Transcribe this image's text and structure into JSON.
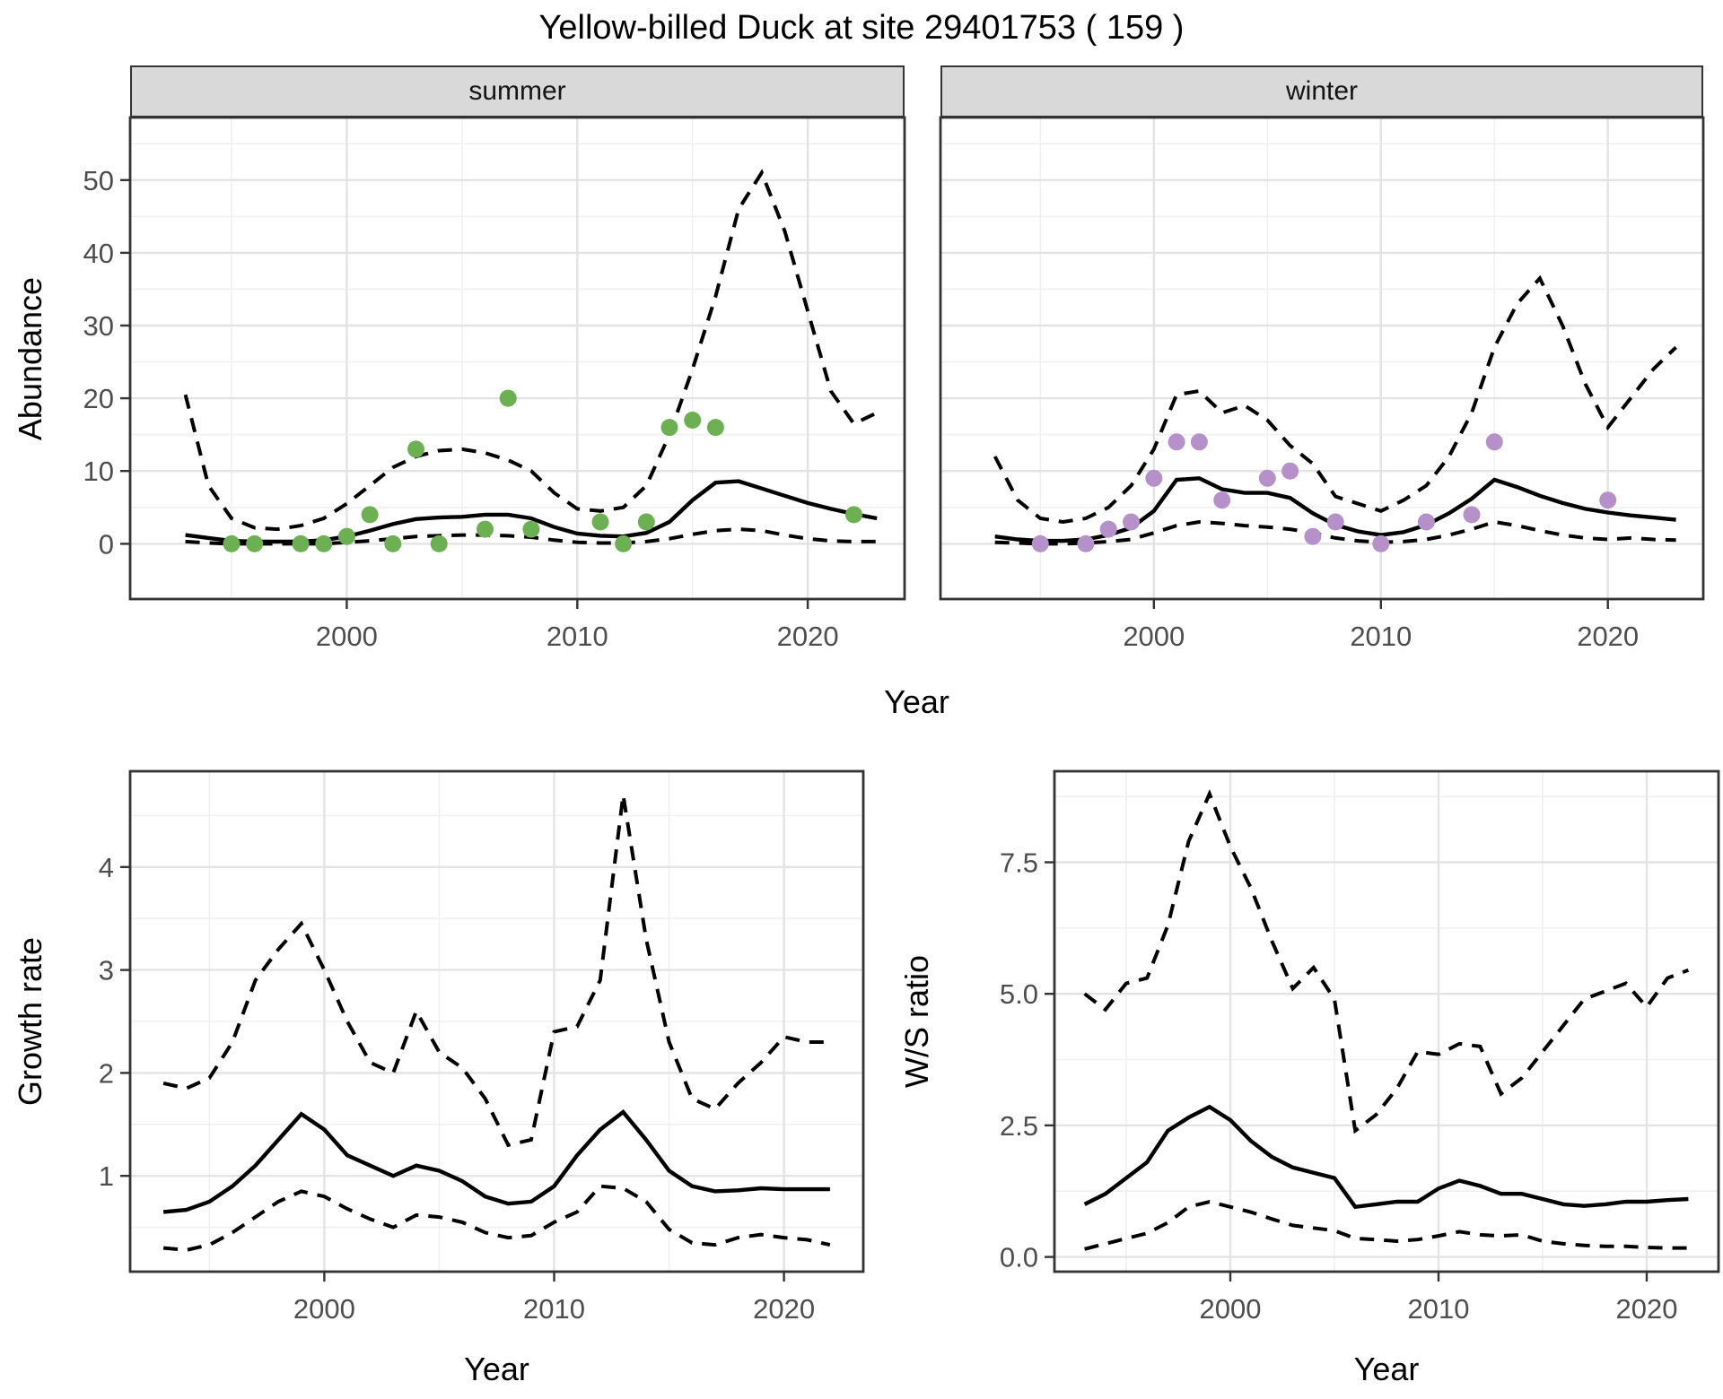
{
  "title": "Yellow-billed Duck at site 29401753 ( 159 )",
  "facets": {
    "summer": "summer",
    "winter": "winter"
  },
  "axes": {
    "abundance_label": "Abundance",
    "year_label": "Year",
    "growth_label": "Growth rate",
    "ws_label": "W/S ratio"
  },
  "colors": {
    "summer_points": "#6cb053",
    "winter_points": "#b690c9",
    "line": "#000000",
    "grid_major": "#e3e3e3",
    "grid_minor": "#f0f0f0",
    "strip_bg": "#d9d9d9",
    "tick_text": "#4d4d4d",
    "panel_border": "#333333"
  },
  "chart_data": [
    {
      "id": "abundance-summer",
      "type": "line",
      "facet": "summer",
      "ylabel": "Abundance",
      "xlabel": "Year",
      "x_domain": [
        1990.6,
        2024.2
      ],
      "y_domain": [
        -7.6,
        58.6
      ],
      "x_ticks": [
        2000,
        2010,
        2020
      ],
      "x_tick_labels": [
        "2000",
        "2010",
        "2020"
      ],
      "x_minor": [
        1995,
        2005,
        2015
      ],
      "y_ticks": [
        0,
        10,
        20,
        30,
        40,
        50
      ],
      "y_tick_labels": [
        "0",
        "10",
        "20",
        "30",
        "40",
        "50"
      ],
      "y_minor": [
        5,
        15,
        25,
        35,
        45,
        55
      ],
      "x": [
        1993,
        1994,
        1995,
        1996,
        1997,
        1998,
        1999,
        2000,
        2001,
        2002,
        2003,
        2004,
        2005,
        2006,
        2007,
        2008,
        2009,
        2010,
        2011,
        2012,
        2013,
        2014,
        2015,
        2016,
        2017,
        2018,
        2019,
        2020,
        2021,
        2022,
        2023
      ],
      "series": [
        {
          "name": "mean",
          "style": "solid",
          "values": [
            1.2,
            0.8,
            0.4,
            0.3,
            0.3,
            0.3,
            0.5,
            1.0,
            1.8,
            2.7,
            3.4,
            3.6,
            3.7,
            4.0,
            4.0,
            3.5,
            2.3,
            1.4,
            1.1,
            1.0,
            1.5,
            3.0,
            6.0,
            8.4,
            8.6,
            7.6,
            6.6,
            5.6,
            4.8,
            4.1,
            3.5
          ]
        },
        {
          "name": "upper_ci",
          "style": "dashed",
          "values": [
            20.5,
            8,
            3.5,
            2.2,
            2.0,
            2.5,
            3.5,
            5.5,
            8,
            10.5,
            12,
            12.8,
            13,
            12.5,
            11.5,
            10,
            7,
            4.8,
            4.5,
            5,
            8,
            15,
            24,
            34,
            46,
            51,
            43,
            32,
            21,
            16.5,
            18
          ]
        },
        {
          "name": "lower_ci",
          "style": "dashed",
          "values": [
            0.3,
            0.1,
            0,
            0,
            0,
            0,
            0,
            0.2,
            0.4,
            0.7,
            1.0,
            1.1,
            1.2,
            1.2,
            1.1,
            0.9,
            0.5,
            0.2,
            0.1,
            0.1,
            0.3,
            0.7,
            1.3,
            1.8,
            2.0,
            1.8,
            1.2,
            0.7,
            0.4,
            0.3,
            0.3
          ]
        }
      ],
      "points": {
        "color_key": "summer_points",
        "x": [
          1995,
          1996,
          1998,
          1999,
          2000,
          2001,
          2002,
          2003,
          2004,
          2006,
          2007,
          2008,
          2011,
          2012,
          2013,
          2014,
          2015,
          2016,
          2022
        ],
        "y": [
          0,
          0,
          0,
          0,
          1,
          4,
          0,
          13,
          0,
          2,
          20,
          2,
          3,
          0,
          3,
          16,
          17,
          16,
          4
        ]
      }
    },
    {
      "id": "abundance-winter",
      "type": "line",
      "facet": "winter",
      "ylabel": "Abundance",
      "xlabel": "Year",
      "x_domain": [
        1990.6,
        2024.2
      ],
      "y_domain": [
        -7.6,
        58.6
      ],
      "x_ticks": [
        2000,
        2010,
        2020
      ],
      "x_tick_labels": [
        "2000",
        "2010",
        "2020"
      ],
      "x_minor": [
        1995,
        2005,
        2015
      ],
      "y_ticks": [
        0,
        10,
        20,
        30,
        40,
        50
      ],
      "y_tick_labels": [
        "0",
        "10",
        "20",
        "30",
        "40",
        "50"
      ],
      "y_minor": [
        5,
        15,
        25,
        35,
        45,
        55
      ],
      "x": [
        1993,
        1994,
        1995,
        1996,
        1997,
        1998,
        1999,
        2000,
        2001,
        2002,
        2003,
        2004,
        2005,
        2006,
        2007,
        2008,
        2009,
        2010,
        2011,
        2012,
        2013,
        2014,
        2015,
        2016,
        2017,
        2018,
        2019,
        2020,
        2021,
        2022,
        2023
      ],
      "series": [
        {
          "name": "mean",
          "style": "solid",
          "values": [
            1.0,
            0.6,
            0.4,
            0.4,
            0.6,
            1.2,
            2.2,
            4.5,
            8.8,
            9.0,
            7.5,
            7.0,
            7.0,
            6.3,
            4.2,
            2.6,
            1.7,
            1.2,
            1.6,
            2.6,
            4.2,
            6.2,
            8.8,
            7.8,
            6.6,
            5.6,
            4.8,
            4.3,
            3.9,
            3.6,
            3.3
          ]
        },
        {
          "name": "upper_ci",
          "style": "dashed",
          "values": [
            12,
            6,
            3.5,
            3,
            3.5,
            5,
            8,
            13,
            20.5,
            21,
            18,
            19,
            17,
            13.5,
            11,
            6.5,
            5.5,
            4.5,
            6,
            8,
            12,
            18,
            27,
            33,
            36.5,
            30,
            22,
            16,
            20,
            24,
            27
          ]
        },
        {
          "name": "lower_ci",
          "style": "dashed",
          "values": [
            0.2,
            0.1,
            0,
            0,
            0.1,
            0.3,
            0.6,
            1.5,
            2.5,
            3.0,
            2.8,
            2.5,
            2.3,
            2.0,
            1.5,
            0.8,
            0.4,
            0.2,
            0.3,
            0.6,
            1.2,
            2.0,
            3.0,
            2.5,
            1.8,
            1.2,
            0.8,
            0.6,
            0.8,
            0.6,
            0.5
          ]
        }
      ],
      "points": {
        "color_key": "winter_points",
        "x": [
          1995,
          1997,
          1998,
          1999,
          2000,
          2001,
          2002,
          2003,
          2005,
          2006,
          2007,
          2008,
          2010,
          2012,
          2014,
          2015,
          2020
        ],
        "y": [
          0,
          0,
          2,
          3,
          9,
          14,
          14,
          6,
          9,
          10,
          1,
          3,
          0,
          3,
          4,
          14,
          6
        ]
      }
    },
    {
      "id": "growth-rate",
      "type": "line",
      "facet": null,
      "ylabel": "Growth rate",
      "xlabel": "Year",
      "x_domain": [
        1991.55,
        2023.45
      ],
      "y_domain": [
        0.07,
        4.93
      ],
      "x_ticks": [
        2000,
        2010,
        2020
      ],
      "x_tick_labels": [
        "2000",
        "2010",
        "2020"
      ],
      "x_minor": [
        1995,
        2005,
        2015
      ],
      "y_ticks": [
        1,
        2,
        3,
        4
      ],
      "y_tick_labels": [
        "1",
        "2",
        "3",
        "4"
      ],
      "y_minor": [
        0.5,
        1.5,
        2.5,
        3.5,
        4.5
      ],
      "x": [
        1993,
        1994,
        1995,
        1996,
        1997,
        1998,
        1999,
        2000,
        2001,
        2002,
        2003,
        2004,
        2005,
        2006,
        2007,
        2008,
        2009,
        2010,
        2011,
        2012,
        2013,
        2014,
        2015,
        2016,
        2017,
        2018,
        2019,
        2020,
        2021,
        2022
      ],
      "series": [
        {
          "name": "mean",
          "style": "solid",
          "values": [
            0.65,
            0.67,
            0.75,
            0.9,
            1.1,
            1.35,
            1.6,
            1.45,
            1.2,
            1.1,
            1.0,
            1.1,
            1.05,
            0.95,
            0.8,
            0.73,
            0.75,
            0.9,
            1.2,
            1.45,
            1.62,
            1.35,
            1.05,
            0.9,
            0.85,
            0.86,
            0.88,
            0.87,
            0.87,
            0.87
          ]
        },
        {
          "name": "upper_ci",
          "style": "dashed",
          "values": [
            1.9,
            1.85,
            1.95,
            2.3,
            2.9,
            3.2,
            3.45,
            3.0,
            2.5,
            2.1,
            2.0,
            2.6,
            2.2,
            2.05,
            1.75,
            1.3,
            1.35,
            2.4,
            2.45,
            2.9,
            4.7,
            3.3,
            2.3,
            1.75,
            1.65,
            1.9,
            2.1,
            2.35,
            2.3,
            2.3
          ]
        },
        {
          "name": "lower_ci",
          "style": "dashed",
          "values": [
            0.3,
            0.28,
            0.33,
            0.45,
            0.6,
            0.75,
            0.85,
            0.8,
            0.68,
            0.58,
            0.5,
            0.62,
            0.6,
            0.55,
            0.45,
            0.4,
            0.42,
            0.55,
            0.65,
            0.9,
            0.88,
            0.75,
            0.48,
            0.35,
            0.33,
            0.4,
            0.43,
            0.4,
            0.38,
            0.33
          ]
        }
      ],
      "points": null
    },
    {
      "id": "ws-ratio",
      "type": "line",
      "facet": null,
      "ylabel": "W/S ratio",
      "xlabel": "Year",
      "x_domain": [
        1991.55,
        2023.45
      ],
      "y_domain": [
        -0.28,
        9.23
      ],
      "x_ticks": [
        2000,
        2010,
        2020
      ],
      "x_tick_labels": [
        "2000",
        "2010",
        "2020"
      ],
      "x_minor": [
        1995,
        2005,
        2015
      ],
      "y_ticks": [
        0,
        2.5,
        5,
        7.5
      ],
      "y_tick_labels": [
        "0.0",
        "2.5",
        "5.0",
        "7.5"
      ],
      "y_minor": [
        1.25,
        3.75,
        6.25,
        8.75
      ],
      "x": [
        1993,
        1994,
        1995,
        1996,
        1997,
        1998,
        1999,
        2000,
        2001,
        2002,
        2003,
        2004,
        2005,
        2006,
        2007,
        2008,
        2009,
        2010,
        2011,
        2012,
        2013,
        2014,
        2015,
        2016,
        2017,
        2018,
        2019,
        2020,
        2021,
        2022
      ],
      "series": [
        {
          "name": "mean",
          "style": "solid",
          "values": [
            1.0,
            1.2,
            1.5,
            1.8,
            2.4,
            2.65,
            2.85,
            2.6,
            2.2,
            1.9,
            1.7,
            1.6,
            1.5,
            0.95,
            1.0,
            1.05,
            1.05,
            1.3,
            1.45,
            1.35,
            1.2,
            1.2,
            1.1,
            1.0,
            0.97,
            1.0,
            1.05,
            1.05,
            1.08,
            1.1
          ]
        },
        {
          "name": "upper_ci",
          "style": "dashed",
          "values": [
            5.0,
            4.7,
            5.2,
            5.3,
            6.3,
            7.9,
            8.8,
            7.8,
            7.0,
            6.0,
            5.1,
            5.5,
            4.9,
            2.4,
            2.7,
            3.2,
            3.9,
            3.85,
            4.05,
            4.0,
            3.1,
            3.4,
            3.9,
            4.4,
            4.9,
            5.05,
            5.2,
            4.75,
            5.3,
            5.45
          ]
        },
        {
          "name": "lower_ci",
          "style": "dashed",
          "values": [
            0.15,
            0.25,
            0.35,
            0.45,
            0.65,
            0.95,
            1.05,
            0.95,
            0.85,
            0.72,
            0.6,
            0.55,
            0.5,
            0.35,
            0.33,
            0.3,
            0.33,
            0.4,
            0.48,
            0.42,
            0.4,
            0.42,
            0.3,
            0.25,
            0.22,
            0.2,
            0.2,
            0.18,
            0.17,
            0.17
          ]
        }
      ],
      "points": null
    }
  ]
}
